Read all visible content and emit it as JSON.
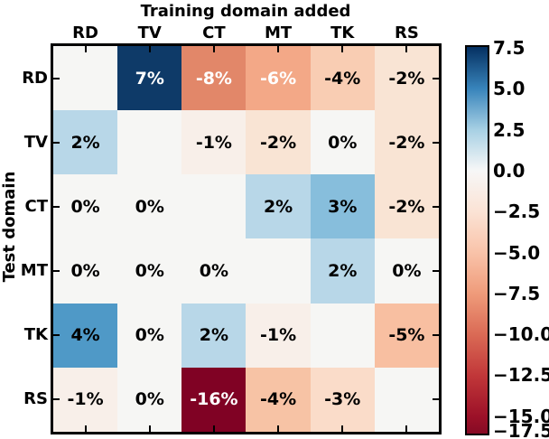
{
  "chart_data": {
    "type": "heatmap",
    "title": "Training domain added",
    "ylabel": "Test domain",
    "colormap": "RdBu",
    "columns": [
      "RD",
      "TV",
      "CT",
      "MT",
      "TK",
      "RS"
    ],
    "rows": [
      "RD",
      "TV",
      "CT",
      "MT",
      "TK",
      "RS"
    ],
    "values_percent": [
      [
        null,
        7,
        -8,
        -6,
        -4,
        -2
      ],
      [
        2,
        null,
        -1,
        -2,
        0,
        -2
      ],
      [
        0,
        0,
        null,
        2,
        3,
        -2
      ],
      [
        0,
        0,
        0,
        null,
        2,
        0
      ],
      [
        4,
        0,
        2,
        -1,
        null,
        -5
      ],
      [
        -1,
        0,
        -16,
        -4,
        -3,
        null
      ]
    ],
    "cell_labels": [
      [
        "",
        "7%",
        "-8%",
        "-6%",
        "-4%",
        "-2%"
      ],
      [
        "2%",
        "",
        "-1%",
        "-2%",
        "0%",
        "-2%"
      ],
      [
        "0%",
        "0%",
        "",
        "2%",
        "3%",
        "-2%"
      ],
      [
        "0%",
        "0%",
        "0%",
        "",
        "2%",
        "0%"
      ],
      [
        "4%",
        "0%",
        "2%",
        "-1%",
        "",
        "-5%"
      ],
      [
        "-1%",
        "0%",
        "-16%",
        "-4%",
        "-3%",
        ""
      ]
    ],
    "cell_colors": [
      [
        "#f6f6f4",
        "#0e3a68",
        "#e28769",
        "#f3a887",
        "#f9cdb3",
        "#f9e4d4"
      ],
      [
        "#b8d7e8",
        "#f6f6f4",
        "#f8efe9",
        "#f9e4d4",
        "#f6f6f4",
        "#f9e4d4"
      ],
      [
        "#f6f6f4",
        "#f6f6f4",
        "#f6f6f4",
        "#b8d7e8",
        "#87bedc",
        "#f9e4d4"
      ],
      [
        "#f6f6f4",
        "#f6f6f4",
        "#f6f6f4",
        "#f6f6f4",
        "#b8d7e8",
        "#f6f6f4"
      ],
      [
        "#4f99c7",
        "#f6f6f4",
        "#b8d7e8",
        "#f8efe9",
        "#f6f6f4",
        "#f8bfa1"
      ],
      [
        "#f8efe9",
        "#f6f6f4",
        "#800224",
        "#f7c3a5",
        "#fadcc9",
        "#f6f6f4"
      ]
    ],
    "cell_text_colors": [
      [
        "#000000",
        "#ffffff",
        "#ffffff",
        "#ffffff",
        "#000000",
        "#000000"
      ],
      [
        "#000000",
        "#000000",
        "#000000",
        "#000000",
        "#000000",
        "#000000"
      ],
      [
        "#000000",
        "#000000",
        "#000000",
        "#000000",
        "#000000",
        "#000000"
      ],
      [
        "#000000",
        "#000000",
        "#000000",
        "#000000",
        "#000000",
        "#000000"
      ],
      [
        "#000000",
        "#000000",
        "#000000",
        "#000000",
        "#000000",
        "#000000"
      ],
      [
        "#000000",
        "#000000",
        "#ffffff",
        "#000000",
        "#000000",
        "#000000"
      ]
    ],
    "frame_color": "#000000",
    "colorbar": {
      "tick_labels": [
        "7.5",
        "5.0",
        "2.5",
        "0.0",
        "−2.5",
        "−5.0",
        "−7.5",
        "−10.0",
        "−12.5",
        "−15.0",
        "−17.5"
      ],
      "gradient_stops": [
        {
          "pos": 0.0,
          "color": "#053061"
        },
        {
          "pos": 0.108,
          "color": "#3884bb"
        },
        {
          "pos": 0.214,
          "color": "#a7d0e4"
        },
        {
          "pos": 0.32,
          "color": "#f7f7f7"
        },
        {
          "pos": 0.426,
          "color": "#fbe3d5"
        },
        {
          "pos": 0.532,
          "color": "#f9c3a9"
        },
        {
          "pos": 0.638,
          "color": "#ef9b7a"
        },
        {
          "pos": 0.744,
          "color": "#da6a55"
        },
        {
          "pos": 0.85,
          "color": "#c13739"
        },
        {
          "pos": 0.956,
          "color": "#9c1128"
        },
        {
          "pos": 1.0,
          "color": "#860a24"
        }
      ]
    }
  }
}
